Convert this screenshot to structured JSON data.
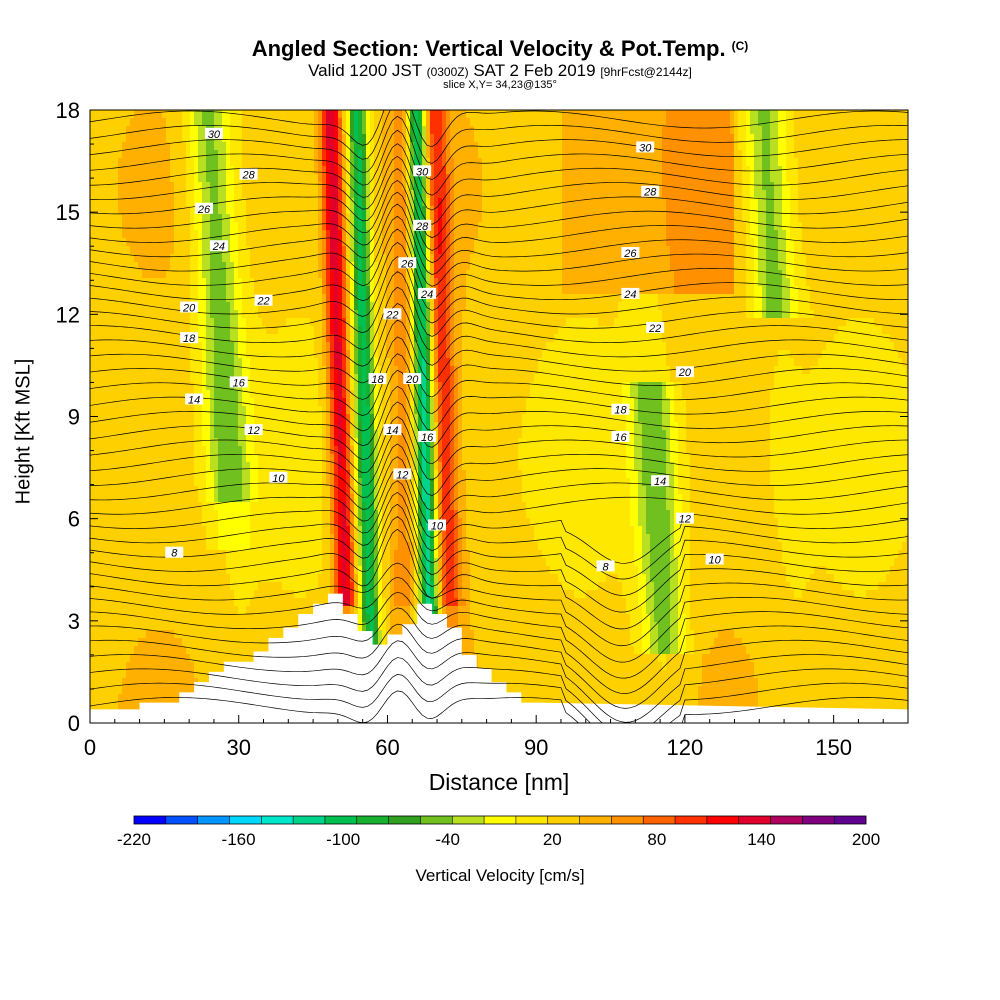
{
  "header": {
    "title": "Angled Section: Vertical Velocity & Pot.Temp.",
    "title_units": "(C)",
    "valid_prefix": "Valid 1200 JST",
    "valid_z": "(0300Z)",
    "valid_date": "SAT 2 Feb 2019",
    "forecast": "[9hrFcst@2144z]",
    "slice": "slice X,Y= 34,23@135°"
  },
  "chart_data": {
    "type": "heatmap",
    "title": "Angled Section: Vertical Velocity & Pot.Temp. (C)",
    "xlabel": "Distance [nm]",
    "ylabel": "Height [Kft MSL]",
    "xlim": [
      0,
      165
    ],
    "ylim": [
      0,
      18
    ],
    "x_ticks": [
      0,
      30,
      60,
      90,
      120,
      150
    ],
    "y_ticks": [
      0,
      3,
      6,
      9,
      12,
      15,
      18
    ],
    "colorbar": {
      "label": "Vertical Velocity [cm/s]",
      "tick_labels": [
        "-220",
        "-160",
        "-100",
        "-40",
        "20",
        "80",
        "140",
        "200"
      ],
      "tick_values": [
        -220,
        -160,
        -100,
        -40,
        20,
        80,
        140,
        200
      ],
      "range": [
        -220,
        200
      ],
      "colors": [
        "#0000ff",
        "#0050ff",
        "#0095ff",
        "#00d8ff",
        "#00e8cc",
        "#00d48a",
        "#00c050",
        "#18b030",
        "#30a020",
        "#70c020",
        "#b8e020",
        "#ffff00",
        "#ffe800",
        "#ffd000",
        "#ffb000",
        "#ff9000",
        "#ff6000",
        "#ff3000",
        "#ff0000",
        "#e0002a",
        "#b00060",
        "#800080",
        "#600090"
      ]
    },
    "contour_series": "Pot.Temp. (C)",
    "contour_levels": [
      8,
      10,
      12,
      14,
      16,
      18,
      20,
      22,
      24,
      26,
      28,
      30
    ],
    "terrain_profile": {
      "x": [
        10,
        18,
        21,
        24,
        27,
        33,
        36,
        39,
        42,
        45,
        48,
        51,
        54,
        57,
        60,
        63,
        66,
        69,
        72,
        75,
        78,
        81,
        84,
        87
      ],
      "height": [
        0.6,
        0.9,
        1.2,
        1.5,
        1.8,
        2.1,
        2.5,
        2.8,
        3.2,
        3.5,
        3.8,
        3.2,
        2.7,
        2.3,
        2.6,
        2.9,
        3.5,
        3.2,
        2.8,
        2.0,
        1.6,
        1.2,
        0.9,
        0.6
      ]
    },
    "updraft_bands": [
      {
        "x": 51,
        "peak_cm_s": 140
      },
      {
        "x": 72,
        "peak_cm_s": 100
      },
      {
        "x": 63,
        "peak_cm_s": 60
      }
    ],
    "downdraft_bands": [
      {
        "x": 68,
        "min_cm_s": -130
      },
      {
        "x": 56,
        "min_cm_s": -100
      },
      {
        "x": 27,
        "min_cm_s": -50
      },
      {
        "x": 113,
        "min_cm_s": -50
      },
      {
        "x": 139,
        "min_cm_s": -50
      }
    ]
  }
}
